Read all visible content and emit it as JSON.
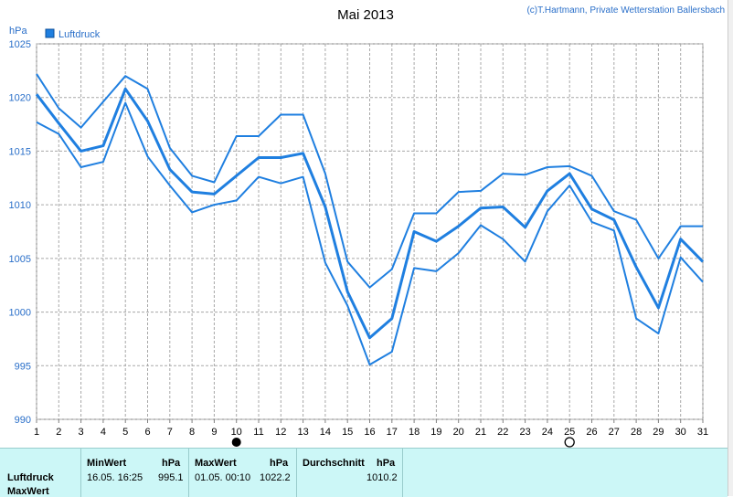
{
  "header": {
    "title": "Mai 2013",
    "credit": "(c)T.Hartmann, Private Wetterstation Ballersbach",
    "unit": "hPa",
    "legend_label": "Luftdruck"
  },
  "colors": {
    "series": "#1f7fe0",
    "grid": "#a8a8a8",
    "axis_text": "#2a6fc9",
    "panel_bg": "#ccf7f7"
  },
  "chart_data": {
    "type": "line",
    "title": "Mai 2013",
    "ylabel": "hPa",
    "xlabel": "",
    "ylim": [
      990,
      1025
    ],
    "yticks": [
      990,
      995,
      1000,
      1005,
      1010,
      1015,
      1020,
      1025
    ],
    "x": [
      1,
      2,
      3,
      4,
      5,
      6,
      7,
      8,
      9,
      10,
      11,
      12,
      13,
      14,
      15,
      16,
      17,
      18,
      19,
      20,
      21,
      22,
      23,
      24,
      25,
      26,
      27,
      28,
      29,
      30,
      31
    ],
    "markers": [
      {
        "x": 10,
        "symbol": "full-moon"
      },
      {
        "x": 25,
        "symbol": "new-moon"
      }
    ],
    "legend": "top-left",
    "grid": true,
    "series": [
      {
        "name": "Luftdruck",
        "role": "max",
        "values": [
          1022.2,
          1019.0,
          1017.2,
          1019.6,
          1022.0,
          1020.8,
          1015.3,
          1012.7,
          1012.1,
          1016.4,
          1016.4,
          1018.4,
          1018.4,
          1012.9,
          1004.7,
          1002.3,
          1004.0,
          1009.2,
          1009.2,
          1011.2,
          1011.3,
          1012.9,
          1012.8,
          1013.5,
          1013.6,
          1012.7,
          1009.4,
          1008.6,
          1005.0,
          1008.0,
          1008.0
        ]
      },
      {
        "name": "Luftdruck",
        "role": "avg",
        "values": [
          1020.3,
          1017.6,
          1015.0,
          1015.5,
          1020.8,
          1017.8,
          1013.3,
          1011.2,
          1011.0,
          1012.7,
          1014.4,
          1014.4,
          1014.8,
          1009.8,
          1001.9,
          997.6,
          999.4,
          1007.5,
          1006.6,
          1008.0,
          1009.7,
          1009.8,
          1007.9,
          1011.3,
          1012.9,
          1009.6,
          1008.6,
          1004.2,
          1000.4,
          1006.8,
          1004.7
        ]
      },
      {
        "name": "Luftdruck",
        "role": "min",
        "values": [
          1017.7,
          1016.6,
          1013.5,
          1014.0,
          1019.5,
          1014.5,
          1011.8,
          1009.3,
          1010.0,
          1010.4,
          1012.6,
          1012.0,
          1012.6,
          1004.6,
          1000.6,
          995.1,
          996.3,
          1004.1,
          1003.8,
          1005.5,
          1008.1,
          1006.8,
          1004.7,
          1009.4,
          1011.8,
          1008.4,
          1007.6,
          999.4,
          998.0,
          1005.1,
          1002.8
        ]
      }
    ]
  },
  "stats": {
    "row_label": "Luftdruck",
    "row_label2": "MaxWert",
    "min_header": "MinWert",
    "min_unit": "hPa",
    "min_time": "16.05.  16:25",
    "min_value": "995.1",
    "max_header": "MaxWert",
    "max_unit": "hPa",
    "max_time": "01.05.  00:10",
    "max_value": "1022.2",
    "avg_header": "Durchschnitt",
    "avg_unit": "hPa",
    "avg_value": "1010.2"
  }
}
